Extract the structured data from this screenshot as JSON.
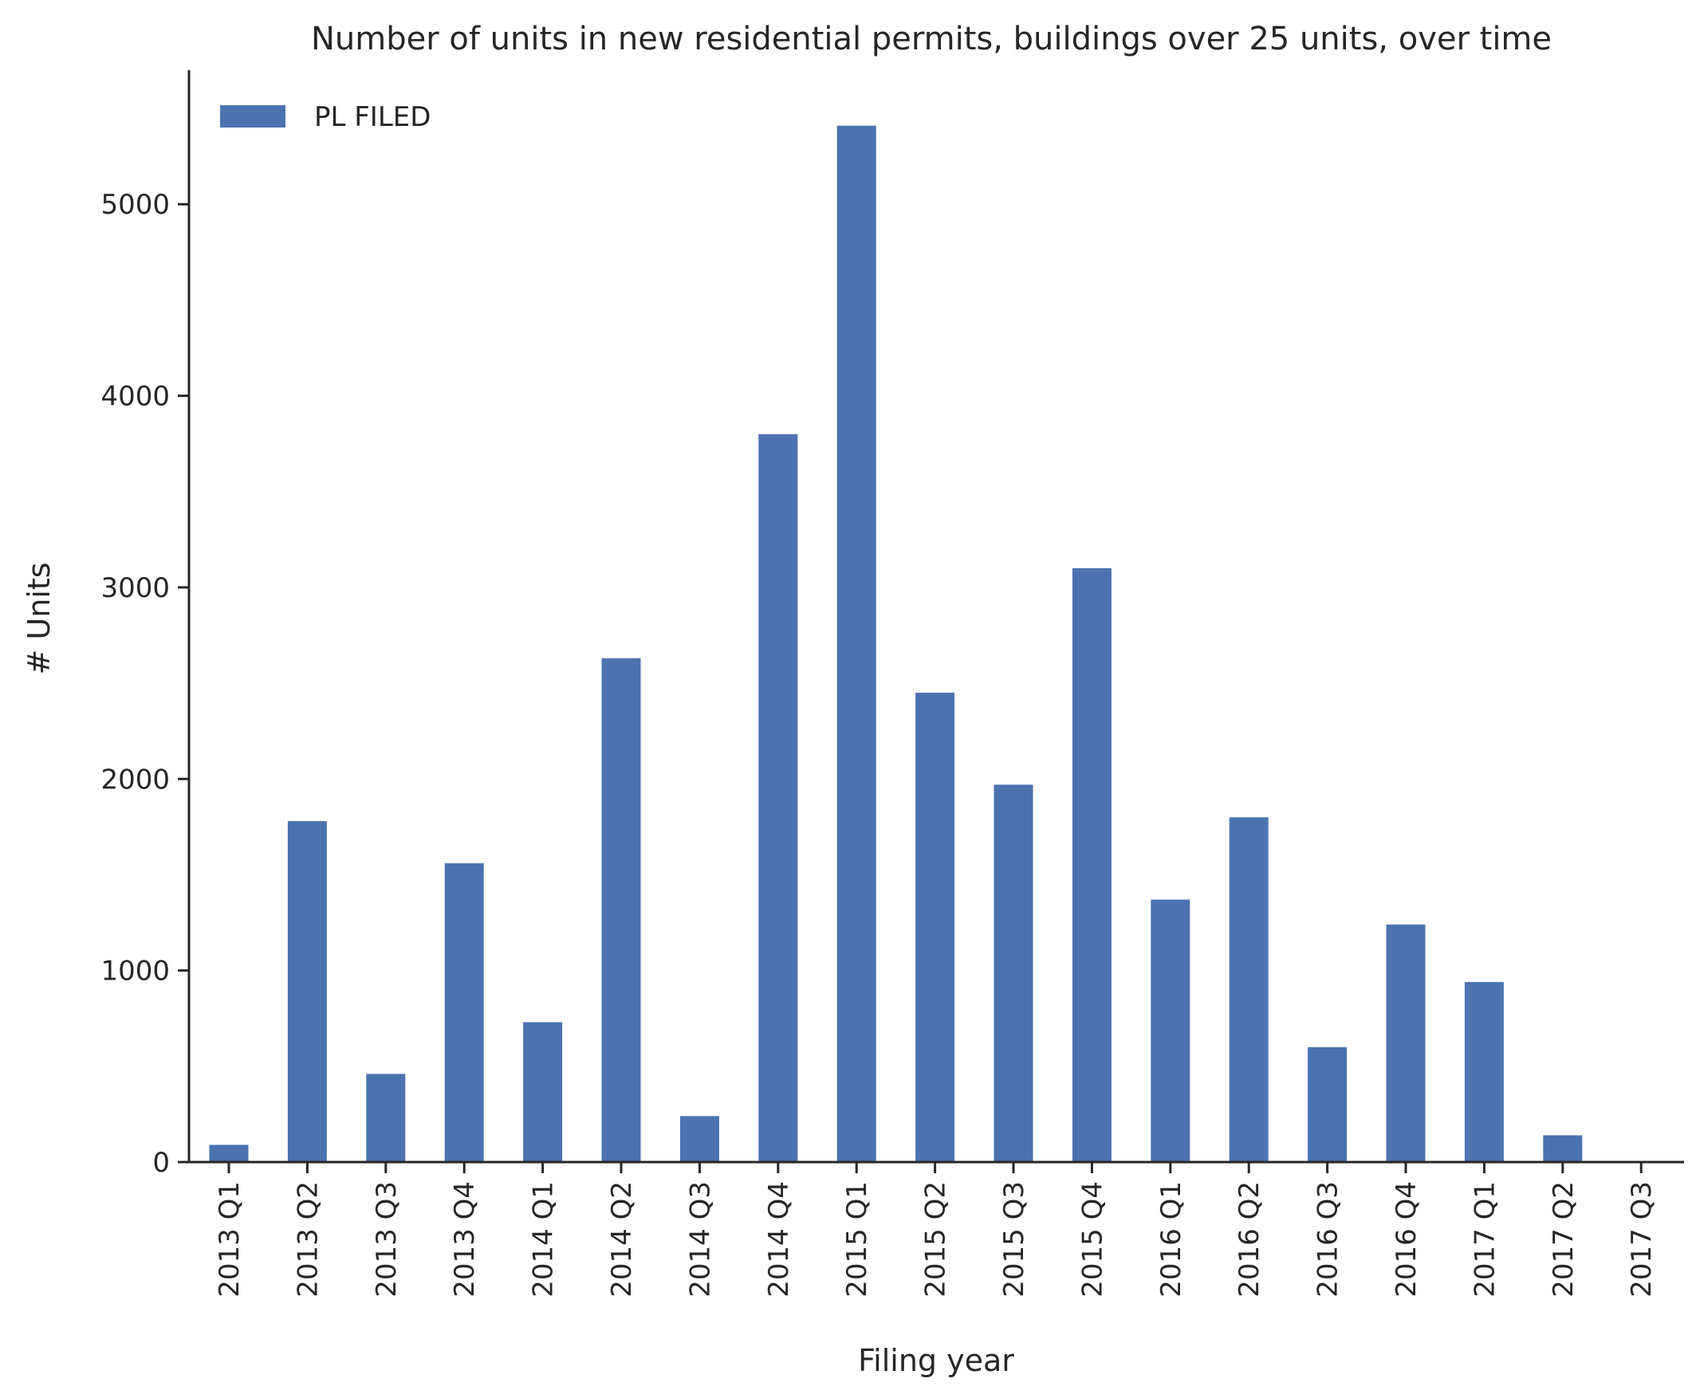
{
  "chart_data": {
    "type": "bar",
    "title": "Number of units in new residential permits, buildings over 25 units, over time",
    "xlabel": "Filing year",
    "ylabel": "# Units",
    "ylim": [
      0,
      5700
    ],
    "yticks": [
      0,
      1000,
      2000,
      3000,
      4000,
      5000
    ],
    "grid": false,
    "legend_position": "top-left",
    "categories": [
      "2013 Q1",
      "2013 Q2",
      "2013 Q3",
      "2013 Q4",
      "2014 Q1",
      "2014 Q2",
      "2014 Q3",
      "2014 Q4",
      "2015 Q1",
      "2015 Q2",
      "2015 Q3",
      "2015 Q4",
      "2016 Q1",
      "2016 Q2",
      "2016 Q3",
      "2016 Q4",
      "2017 Q1",
      "2017 Q2",
      "2017 Q3"
    ],
    "series": [
      {
        "name": "PL FILED",
        "color": "#4c72b0",
        "values": [
          90,
          1780,
          460,
          1560,
          730,
          2630,
          240,
          3800,
          5410,
          2450,
          1970,
          3100,
          1370,
          1800,
          600,
          1240,
          940,
          140,
          0
        ]
      }
    ]
  }
}
